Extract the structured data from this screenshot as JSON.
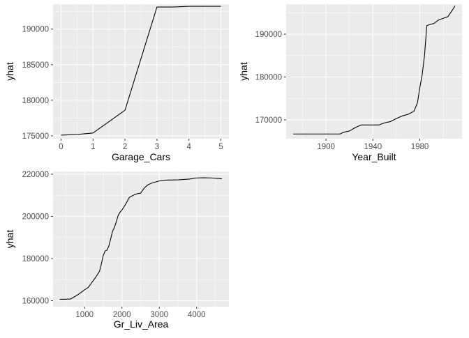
{
  "colors": {
    "panel_background": "#ebebeb",
    "grid_major": "#ffffff",
    "line": "#000000",
    "tick_text": "#4d4d4d",
    "axis_title": "#000000"
  },
  "chart_data": [
    {
      "type": "line",
      "xlabel": "Garage_Cars",
      "ylabel": "yhat",
      "xlim": [
        -0.25,
        5.25
      ],
      "ylim": [
        174600,
        193500
      ],
      "xticks": [
        0,
        1,
        2,
        3,
        4,
        5
      ],
      "yticks": [
        175000,
        180000,
        185000,
        190000
      ],
      "grid": true,
      "legend": "none",
      "series": [
        {
          "x": [
            0,
            0.5,
            1,
            2,
            3,
            3.5,
            4,
            5
          ],
          "y": [
            175100,
            175200,
            175400,
            178600,
            193100,
            193100,
            193200,
            193200
          ]
        }
      ]
    },
    {
      "type": "line",
      "xlabel": "Year_Built",
      "ylabel": "yhat",
      "xlim": [
        1866,
        2016
      ],
      "ylim": [
        165600,
        197000
      ],
      "xticks": [
        1900,
        1940,
        1980
      ],
      "yticks": [
        170000,
        180000,
        190000
      ],
      "grid": true,
      "legend": "none",
      "series": [
        {
          "x": [
            1872,
            1900,
            1912,
            1915,
            1920,
            1925,
            1930,
            1940,
            1945,
            1950,
            1955,
            1960,
            1965,
            1970,
            1975,
            1978,
            1980,
            1982,
            1984,
            1986,
            1988,
            1992,
            1996,
            2000,
            2004,
            2008,
            2010
          ],
          "y": [
            166700,
            166700,
            166700,
            167100,
            167400,
            168200,
            168800,
            168800,
            168800,
            169300,
            169600,
            170300,
            170900,
            171300,
            172000,
            174000,
            177500,
            180500,
            185000,
            192000,
            192200,
            192500,
            193300,
            193700,
            194100,
            195700,
            196600
          ]
        }
      ]
    },
    {
      "type": "line",
      "xlabel": "Gr_Liv_Area",
      "ylabel": "yhat",
      "xlim": [
        155,
        4865
      ],
      "ylim": [
        157200,
        221300
      ],
      "xticks": [
        1000,
        2000,
        3000,
        4000
      ],
      "yticks": [
        160000,
        180000,
        200000,
        220000
      ],
      "grid": true,
      "legend": "none",
      "series": [
        {
          "x": [
            334,
            450,
            620,
            800,
            1000,
            1100,
            1200,
            1300,
            1400,
            1450,
            1500,
            1550,
            1600,
            1650,
            1700,
            1750,
            1800,
            1850,
            1900,
            1950,
            2000,
            2100,
            2200,
            2300,
            2400,
            2500,
            2600,
            2700,
            2800,
            2900,
            3000,
            3200,
            3500,
            3800,
            4000,
            4200,
            4400,
            4676
          ],
          "y": [
            160700,
            160700,
            160800,
            162600,
            165200,
            166300,
            168800,
            171200,
            174000,
            177500,
            181500,
            183600,
            184000,
            186000,
            189500,
            193000,
            194800,
            197500,
            200500,
            202000,
            203000,
            205800,
            209000,
            210000,
            210700,
            211000,
            213500,
            215000,
            215800,
            216300,
            216800,
            217200,
            217300,
            217700,
            218200,
            218300,
            218200,
            217800
          ]
        }
      ]
    }
  ]
}
